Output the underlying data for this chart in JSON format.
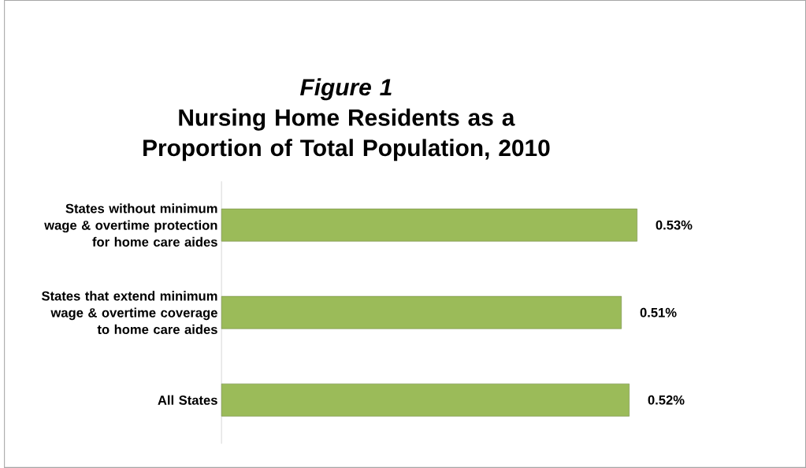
{
  "chart_data": {
    "type": "bar",
    "orientation": "horizontal",
    "title": "*Figure 1*",
    "subtitle": "Nursing Home Residents as a Proportion of Total Population, 2010",
    "categories": [
      "States without minimum wage & overtime protection for home care aides",
      "States that extend minimum wage & overtime coverage to home care aides",
      "All States"
    ],
    "values": [
      0.53,
      0.51,
      0.52
    ],
    "value_labels": [
      "0.53%",
      "0.51%",
      "0.52%"
    ],
    "color": "#9bbb59"
  }
}
